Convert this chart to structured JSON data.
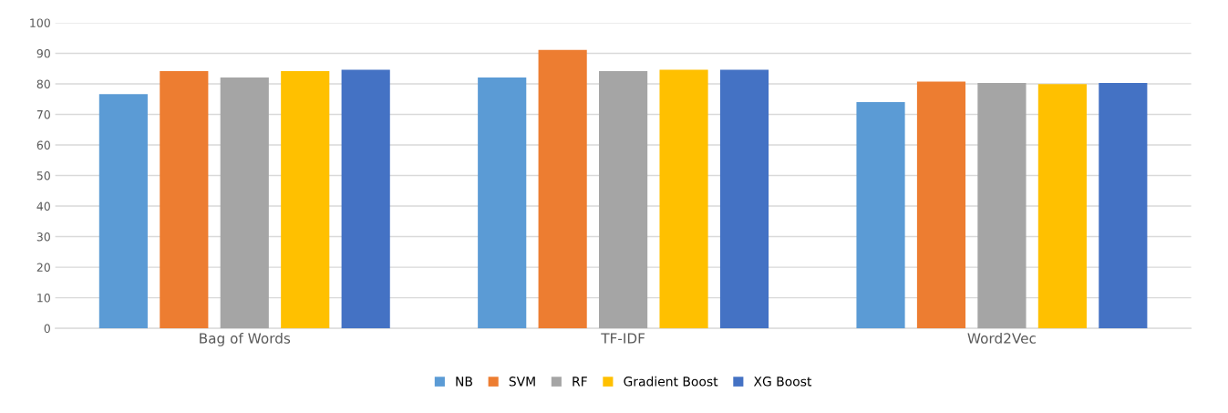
{
  "chart_data": {
    "type": "bar",
    "categories": [
      "Bag of Words",
      "TF-IDF",
      "Word2Vec"
    ],
    "series": [
      {
        "name": "NB",
        "color": "#5b9bd5",
        "values": [
          76.6,
          82.1,
          74.0
        ]
      },
      {
        "name": "SVM",
        "color": "#ed7d31",
        "values": [
          84.2,
          91.1,
          80.7
        ]
      },
      {
        "name": "RF",
        "color": "#a5a5a5",
        "values": [
          82.1,
          84.2,
          80.3
        ]
      },
      {
        "name": "Gradient Boost",
        "color": "#ffc000",
        "values": [
          84.2,
          84.6,
          79.9
        ]
      },
      {
        "name": "XG Boost",
        "color": "#4472c4",
        "values": [
          84.6,
          84.6,
          80.3
        ]
      }
    ],
    "ylim": [
      0,
      100
    ],
    "yticks": [
      0,
      10,
      20,
      30,
      40,
      50,
      60,
      70,
      80,
      90,
      100
    ],
    "grid": "y",
    "legend": "bottom"
  }
}
